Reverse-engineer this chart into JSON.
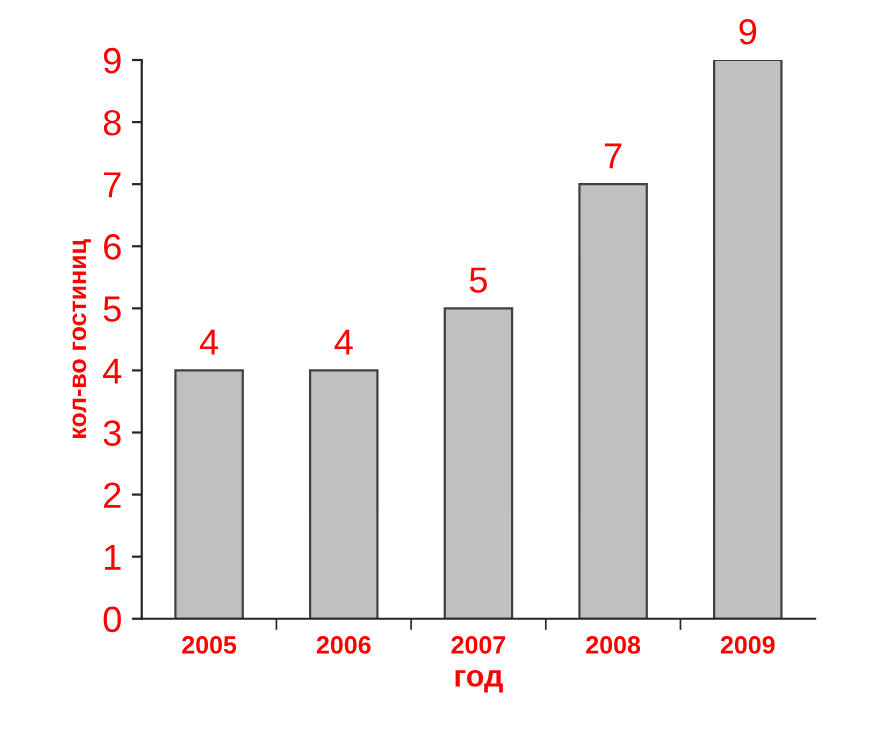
{
  "chart_data": {
    "type": "bar",
    "xlabel": "год",
    "ylabel": "кол-во гостиниц",
    "categories": [
      "2005",
      "2006",
      "2007",
      "2008",
      "2009"
    ],
    "values": [
      4,
      4,
      5,
      7,
      9
    ],
    "color": "#c0c0c0",
    "ylim": [
      0,
      9
    ],
    "yticks": [
      0,
      1,
      2,
      3,
      4,
      5,
      6,
      7,
      8,
      9
    ],
    "data_labels": true,
    "grid": false,
    "legend": false
  }
}
